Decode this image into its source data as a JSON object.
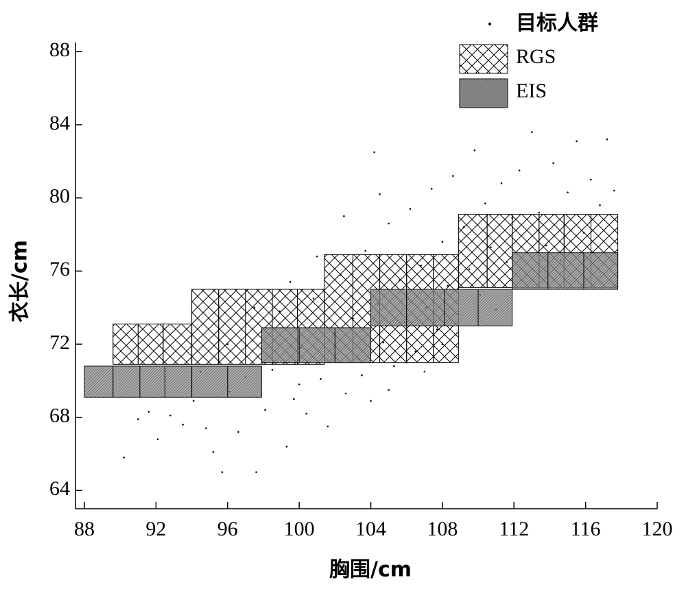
{
  "chart_data": {
    "type": "scatter",
    "xlabel": "胸围/cm",
    "ylabel": "衣长/cm",
    "xlim": [
      87.5,
      120
    ],
    "ylim": [
      63,
      88.5
    ],
    "xticks": [
      88,
      92,
      96,
      100,
      104,
      108,
      112,
      116,
      120
    ],
    "yticks": [
      64,
      68,
      72,
      76,
      80,
      84,
      88
    ],
    "series": [
      {
        "name": "目标人群",
        "type": "scatter",
        "color": "#000000",
        "x": [
          90.2,
          91.0,
          91.6,
          92.1,
          92.8,
          93.5,
          94.1,
          94.8,
          95.2,
          95.7,
          96.1,
          96.6,
          97.0,
          97.6,
          98.1,
          98.5,
          98.9,
          99.3,
          99.7,
          100.1,
          100.4,
          100.8,
          101.2,
          101.6,
          101.9,
          102.3,
          102.6,
          103.0,
          103.3,
          103.7,
          104.0,
          104.2,
          104.4,
          104.7,
          105.0,
          105.3,
          105.6,
          105.9,
          106.2,
          106.5,
          106.8,
          107.1,
          107.4,
          107.7,
          108.0,
          108.3,
          108.6,
          108.9,
          109.2,
          109.5,
          109.8,
          110.1,
          110.4,
          110.7,
          111.0,
          111.3,
          111.6,
          111.9,
          112.3,
          112.7,
          113.0,
          113.4,
          113.8,
          114.2,
          114.6,
          115.0,
          115.5,
          115.9,
          116.3,
          116.8,
          117.2,
          117.6,
          99.5,
          101.0,
          102.5,
          103.5,
          105.0,
          106.0,
          107.0,
          108.0,
          104.5,
          100.0,
          97.5,
          96.0,
          94.5
        ],
        "y": [
          65.8,
          67.9,
          68.3,
          66.8,
          68.1,
          67.6,
          68.9,
          67.4,
          66.1,
          65.0,
          69.4,
          67.2,
          70.2,
          65.0,
          68.4,
          70.6,
          73.8,
          66.4,
          69.0,
          71.8,
          68.2,
          74.5,
          70.1,
          67.5,
          72.6,
          75.8,
          69.3,
          73.4,
          71.2,
          77.1,
          68.9,
          82.5,
          74.2,
          72.1,
          78.6,
          70.8,
          75.5,
          73.2,
          79.4,
          71.6,
          76.3,
          74.0,
          80.5,
          72.8,
          77.6,
          75.2,
          81.2,
          73.6,
          78.4,
          76.1,
          82.6,
          74.7,
          79.7,
          77.3,
          73.9,
          80.8,
          76.5,
          78.9,
          81.5,
          75.8,
          83.6,
          79.2,
          77.4,
          81.9,
          76.6,
          80.3,
          83.1,
          78.1,
          81.0,
          79.6,
          83.2,
          80.4,
          75.4,
          76.8,
          79.0,
          70.3,
          69.5,
          71.0,
          70.5,
          72.0,
          80.2,
          69.8,
          74.0,
          72.0,
          70.5
        ]
      },
      {
        "name": "RGS",
        "type": "box",
        "color": "#ffffff",
        "x0": [
          89.6,
          91.0,
          92.4,
          94.0,
          95.5,
          97.0,
          98.5,
          99.9,
          101.4,
          103.0,
          104.5,
          106.0,
          107.5,
          108.9,
          110.5,
          111.9,
          113.4,
          114.8,
          116.3
        ],
        "x1": [
          91.0,
          92.4,
          94.0,
          95.5,
          97.0,
          98.5,
          99.9,
          101.4,
          103.0,
          104.5,
          106.0,
          107.5,
          108.9,
          110.5,
          111.9,
          113.4,
          114.8,
          116.3,
          117.8
        ],
        "y0": [
          70.9,
          70.9,
          70.9,
          70.9,
          70.9,
          70.9,
          70.9,
          70.9,
          71.0,
          71.0,
          71.0,
          71.0,
          71.0,
          75.1,
          75.1,
          75.1,
          75.1,
          75.1,
          75.1
        ],
        "y1": [
          73.1,
          73.1,
          73.1,
          75.0,
          75.0,
          75.0,
          75.0,
          75.0,
          76.9,
          76.9,
          76.9,
          76.9,
          76.9,
          79.1,
          79.1,
          79.1,
          79.1,
          79.1,
          79.1
        ]
      },
      {
        "name": "EIS",
        "type": "box",
        "color": "#8c8c8c",
        "x0": [
          88.0,
          89.6,
          91.1,
          92.5,
          94.0,
          96.0,
          97.9,
          100.0,
          102.0,
          104.0,
          106.0,
          108.1,
          110.0,
          111.9,
          113.9,
          115.9
        ],
        "x1": [
          89.6,
          91.1,
          92.5,
          94.0,
          96.0,
          97.9,
          100.0,
          102.0,
          104.0,
          106.0,
          108.1,
          110.0,
          111.9,
          113.9,
          115.9,
          117.8
        ],
        "y0": [
          69.1,
          69.1,
          69.1,
          69.1,
          69.1,
          69.1,
          71.0,
          71.0,
          71.0,
          73.0,
          73.0,
          73.0,
          73.0,
          75.0,
          75.0,
          75.0
        ],
        "y1": [
          70.8,
          70.8,
          70.8,
          70.8,
          70.8,
          70.8,
          72.9,
          72.9,
          72.9,
          75.0,
          75.0,
          75.0,
          75.0,
          77.0,
          77.0,
          77.0
        ]
      }
    ]
  }
}
